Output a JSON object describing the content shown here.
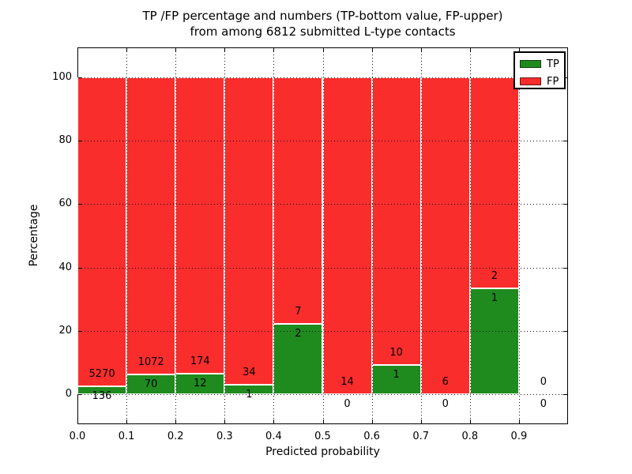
{
  "figure": {
    "title_line1": "TP /FP percentage and numbers (TP-bottom value, FP-upper)",
    "title_line2": "from among 6812 submitted L-type contacts"
  },
  "chart_data": {
    "type": "bar",
    "stacked": true,
    "normalized": "each bar totals 100%",
    "title": "TP /FP percentage and numbers (TP-bottom value, FP-upper)\nfrom among 6812 submitted L-type contacts",
    "xlabel": "Predicted probability",
    "ylabel": "Percentage",
    "total_submitted_contacts": 6812,
    "bin_edges": [
      0.0,
      0.1,
      0.2,
      0.3,
      0.4,
      0.5,
      0.6,
      0.7,
      0.8,
      0.9,
      1.0
    ],
    "categories": [
      "0.0-0.1",
      "0.1-0.2",
      "0.2-0.3",
      "0.3-0.4",
      "0.4-0.5",
      "0.5-0.6",
      "0.6-0.7",
      "0.7-0.8",
      "0.8-0.9",
      "0.9-1.0"
    ],
    "series": [
      {
        "name": "TP",
        "color": "#1f8b1f",
        "counts": [
          136,
          70,
          12,
          1,
          2,
          0,
          1,
          0,
          1,
          0
        ]
      },
      {
        "name": "FP",
        "color": "#fa2d2d",
        "counts": [
          5270,
          1072,
          174,
          34,
          7,
          14,
          10,
          6,
          2,
          0
        ]
      }
    ],
    "tp_percent_per_bin": [
      2.52,
      6.13,
      6.45,
      2.86,
      22.22,
      0.0,
      9.09,
      0.0,
      33.33,
      null
    ],
    "xticks": [
      "0.0",
      "0.1",
      "0.2",
      "0.3",
      "0.4",
      "0.5",
      "0.6",
      "0.7",
      "0.8",
      "0.9"
    ],
    "yticks": [
      0,
      20,
      40,
      60,
      80,
      100
    ],
    "xlim": [
      0.0,
      1.0
    ],
    "ylim": [
      -9.6,
      109.6
    ],
    "grid": "dotted, both axes",
    "legend_position": "upper right",
    "label_convention": "FP count printed above green/red boundary, TP count printed below it"
  }
}
